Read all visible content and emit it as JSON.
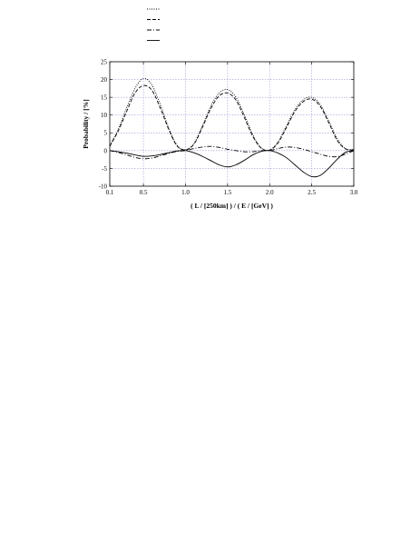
{
  "chart_data": {
    "type": "line",
    "title": "",
    "xlabel": "( L / [250km] ) / ( E / [GeV] )",
    "ylabel": "Probability / [%]",
    "xlim": [
      0.1,
      3.0
    ],
    "ylim": [
      -10,
      25
    ],
    "x_ticks": [
      "0.1",
      "0.5",
      "1.0",
      "1.5",
      "2.0",
      "2.5",
      "3.0"
    ],
    "x_tick_values": [
      0.1,
      0.5,
      1.0,
      1.5,
      2.0,
      2.5,
      3.0
    ],
    "y_ticks": [
      "-10",
      "-5",
      "0",
      "5",
      "10",
      "15",
      "20",
      "25"
    ],
    "y_tick_values": [
      -10,
      -5,
      0,
      5,
      10,
      15,
      20,
      25
    ],
    "grid": true,
    "grid_color": "#9a9ad8",
    "legend_placement": "above the plot, top-left",
    "x": [
      0.1,
      0.2,
      0.3,
      0.4,
      0.5,
      0.6,
      0.7,
      0.8,
      0.9,
      1.0,
      1.1,
      1.2,
      1.3,
      1.4,
      1.5,
      1.6,
      1.7,
      1.8,
      1.9,
      2.0,
      2.1,
      2.2,
      2.3,
      2.4,
      2.5,
      2.6,
      2.7,
      2.8,
      2.9,
      3.0
    ],
    "series": [
      {
        "style": "dotted",
        "values": [
          1.5,
          6.0,
          12.0,
          17.5,
          20.3,
          18.5,
          13.0,
          6.5,
          1.5,
          0.3,
          2.0,
          7.0,
          12.5,
          16.2,
          17.2,
          15.0,
          10.0,
          4.5,
          0.8,
          0.2,
          2.5,
          7.0,
          11.5,
          14.3,
          15.0,
          13.0,
          8.5,
          3.5,
          0.6,
          0.3
        ]
      },
      {
        "style": "dashed",
        "values": [
          1.2,
          5.5,
          11.0,
          16.2,
          18.3,
          17.0,
          12.0,
          6.0,
          1.3,
          0.2,
          1.8,
          6.5,
          11.8,
          15.4,
          16.2,
          14.2,
          9.3,
          4.0,
          0.7,
          0.1,
          2.2,
          6.5,
          11.0,
          13.8,
          14.5,
          12.5,
          8.0,
          3.0,
          0.5,
          0.2
        ]
      },
      {
        "style": "dash-dot",
        "values": [
          0.0,
          -0.5,
          -1.2,
          -1.9,
          -2.3,
          -2.1,
          -1.5,
          -0.8,
          -0.2,
          0.0,
          0.6,
          1.0,
          1.2,
          0.9,
          0.4,
          0.0,
          -0.3,
          -0.3,
          0.0,
          0.0,
          0.6,
          1.0,
          0.9,
          0.4,
          -0.3,
          -1.0,
          -1.6,
          -1.7,
          -1.0,
          0.0
        ]
      },
      {
        "style": "solid",
        "values": [
          0.0,
          -0.3,
          -0.7,
          -1.2,
          -1.6,
          -1.5,
          -1.1,
          -0.6,
          -0.1,
          0.0,
          -0.6,
          -1.6,
          -2.8,
          -4.0,
          -4.6,
          -4.0,
          -2.7,
          -1.2,
          -0.2,
          0.0,
          -0.7,
          -2.0,
          -4.0,
          -6.0,
          -7.3,
          -7.0,
          -5.0,
          -2.5,
          -0.5,
          0.0
        ]
      }
    ],
    "series_colors": [
      "#000000",
      "#000000",
      "#000000",
      "#000000"
    ]
  }
}
